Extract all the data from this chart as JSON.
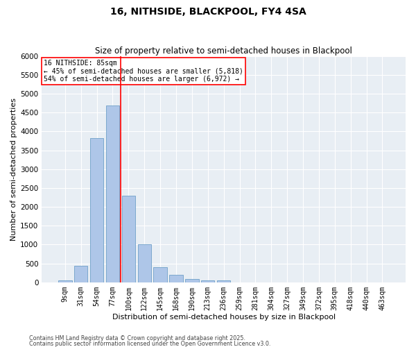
{
  "title1": "16, NITHSIDE, BLACKPOOL, FY4 4SA",
  "title2": "Size of property relative to semi-detached houses in Blackpool",
  "xlabel": "Distribution of semi-detached houses by size in Blackpool",
  "ylabel": "Number of semi-detached properties",
  "categories": [
    "9sqm",
    "31sqm",
    "54sqm",
    "77sqm",
    "100sqm",
    "122sqm",
    "145sqm",
    "168sqm",
    "190sqm",
    "213sqm",
    "236sqm",
    "259sqm",
    "281sqm",
    "304sqm",
    "327sqm",
    "349sqm",
    "372sqm",
    "395sqm",
    "418sqm",
    "440sqm",
    "463sqm"
  ],
  "values": [
    50,
    430,
    3820,
    4680,
    2300,
    1000,
    410,
    200,
    80,
    60,
    50,
    0,
    0,
    0,
    0,
    0,
    0,
    0,
    0,
    0,
    0
  ],
  "bar_color": "#aec6e8",
  "bar_edge_color": "#6fa0c8",
  "vline_x_index": 3,
  "vline_color": "red",
  "annotation_title": "16 NITHSIDE: 85sqm",
  "annotation_line1": "← 45% of semi-detached houses are smaller (5,818)",
  "annotation_line2": "54% of semi-detached houses are larger (6,972) →",
  "annotation_box_color": "white",
  "annotation_box_edge": "red",
  "ylim": [
    0,
    6000
  ],
  "yticks": [
    0,
    500,
    1000,
    1500,
    2000,
    2500,
    3000,
    3500,
    4000,
    4500,
    5000,
    5500,
    6000
  ],
  "background_color": "#e8eef4",
  "grid_color": "white",
  "footer1": "Contains HM Land Registry data © Crown copyright and database right 2025.",
  "footer2": "Contains public sector information licensed under the Open Government Licence v3.0."
}
